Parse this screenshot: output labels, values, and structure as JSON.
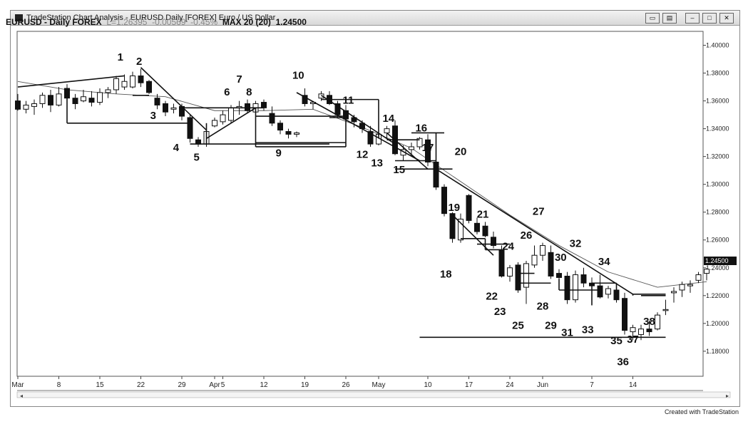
{
  "window": {
    "title": "TradeStation Chart Analysis - EURUSD Daily [FOREX] Euro / US Dollar"
  },
  "header": {
    "symbol": "EURUSD - Daily FOREX",
    "last": "L=1.26395",
    "change": "-0.00569",
    "change_pct": "-0.45%",
    "study": "MAX 20 (20)",
    "study_value": "1.24500"
  },
  "footer": {
    "credit": "Created with TradeStation"
  },
  "chart_data": {
    "type": "candlestick",
    "title": "EURUSD - Daily FOREX",
    "y_ticks": [
      "1.40000",
      "1.38000",
      "1.36000",
      "1.34000",
      "1.32000",
      "1.30000",
      "1.28000",
      "1.26000",
      "1.24000",
      "1.22000",
      "1.20000",
      "1.18000"
    ],
    "ylim": [
      1.162,
      1.41
    ],
    "current_price_label": "1.24500",
    "x_ticks": [
      {
        "label": "Mar",
        "day": 0
      },
      {
        "label": "8",
        "day": 5
      },
      {
        "label": "15",
        "day": 10
      },
      {
        "label": "22",
        "day": 15
      },
      {
        "label": "29",
        "day": 20
      },
      {
        "label": "Apr",
        "day": 24
      },
      {
        "label": "5",
        "day": 25
      },
      {
        "label": "12",
        "day": 30
      },
      {
        "label": "19",
        "day": 35
      },
      {
        "label": "26",
        "day": 40
      },
      {
        "label": "May",
        "day": 44
      },
      {
        "label": "10",
        "day": 50
      },
      {
        "label": "17",
        "day": 55
      },
      {
        "label": "24",
        "day": 60
      },
      {
        "label": "Jun",
        "day": 64
      },
      {
        "label": "7",
        "day": 70
      },
      {
        "label": "14",
        "day": 75
      }
    ],
    "candles": [
      [
        1.36,
        1.365,
        1.353,
        1.354
      ],
      [
        1.354,
        1.36,
        1.351,
        1.357
      ],
      [
        1.356,
        1.361,
        1.35,
        1.358
      ],
      [
        1.358,
        1.366,
        1.355,
        1.364
      ],
      [
        1.364,
        1.368,
        1.352,
        1.357
      ],
      [
        1.357,
        1.37,
        1.356,
        1.365
      ],
      [
        1.369,
        1.372,
        1.36,
        1.362
      ],
      [
        1.362,
        1.365,
        1.354,
        1.358
      ],
      [
        1.36,
        1.368,
        1.359,
        1.363
      ],
      [
        1.362,
        1.367,
        1.356,
        1.359
      ],
      [
        1.359,
        1.369,
        1.357,
        1.366
      ],
      [
        1.366,
        1.37,
        1.362,
        1.368
      ],
      [
        1.368,
        1.378,
        1.365,
        1.376
      ],
      [
        1.37,
        1.379,
        1.368,
        1.374
      ],
      [
        1.37,
        1.381,
        1.369,
        1.378
      ],
      [
        1.378,
        1.383,
        1.37,
        1.373
      ],
      [
        1.374,
        1.375,
        1.365,
        1.366
      ],
      [
        1.362,
        1.365,
        1.354,
        1.357
      ],
      [
        1.358,
        1.36,
        1.349,
        1.352
      ],
      [
        1.354,
        1.358,
        1.351,
        1.355
      ],
      [
        1.356,
        1.358,
        1.346,
        1.349
      ],
      [
        1.348,
        1.35,
        1.33,
        1.333
      ],
      [
        1.332,
        1.334,
        1.327,
        1.329
      ],
      [
        1.329,
        1.339,
        1.327,
        1.338
      ],
      [
        1.342,
        1.348,
        1.341,
        1.346
      ],
      [
        1.345,
        1.353,
        1.343,
        1.35
      ],
      [
        1.346,
        1.357,
        1.344,
        1.355
      ],
      [
        1.355,
        1.36,
        1.35,
        1.356
      ],
      [
        1.358,
        1.361,
        1.351,
        1.353
      ],
      [
        1.352,
        1.36,
        1.35,
        1.358
      ],
      [
        1.359,
        1.361,
        1.353,
        1.355
      ],
      [
        1.351,
        1.356,
        1.342,
        1.344
      ],
      [
        1.344,
        1.346,
        1.336,
        1.339
      ],
      [
        1.338,
        1.34,
        1.333,
        1.336
      ],
      [
        1.336,
        1.338,
        1.334,
        1.337
      ],
      [
        1.364,
        1.369,
        1.356,
        1.358
      ],
      [
        1.358,
        1.36,
        1.354,
        1.359
      ],
      [
        1.362,
        1.367,
        1.36,
        1.365
      ],
      [
        1.364,
        1.367,
        1.357,
        1.358
      ],
      [
        1.358,
        1.36,
        1.348,
        1.35
      ],
      [
        1.353,
        1.357,
        1.345,
        1.347
      ],
      [
        1.348,
        1.35,
        1.341,
        1.345
      ],
      [
        1.344,
        1.346,
        1.337,
        1.34
      ],
      [
        1.338,
        1.342,
        1.327,
        1.329
      ],
      [
        1.329,
        1.338,
        1.328,
        1.336
      ],
      [
        1.337,
        1.342,
        1.333,
        1.34
      ],
      [
        1.342,
        1.346,
        1.321,
        1.322
      ],
      [
        1.321,
        1.328,
        1.317,
        1.325
      ],
      [
        1.325,
        1.33,
        1.32,
        1.327
      ],
      [
        1.327,
        1.334,
        1.325,
        1.333
      ],
      [
        1.332,
        1.336,
        1.313,
        1.316
      ],
      [
        1.316,
        1.32,
        1.296,
        1.298
      ],
      [
        1.298,
        1.3,
        1.277,
        1.279
      ],
      [
        1.279,
        1.28,
        1.258,
        1.261
      ],
      [
        1.26,
        1.279,
        1.258,
        1.275
      ],
      [
        1.292,
        1.293,
        1.272,
        1.274
      ],
      [
        1.272,
        1.276,
        1.264,
        1.266
      ],
      [
        1.27,
        1.273,
        1.262,
        1.263
      ],
      [
        1.262,
        1.266,
        1.254,
        1.256
      ],
      [
        1.253,
        1.256,
        1.233,
        1.234
      ],
      [
        1.234,
        1.242,
        1.23,
        1.24
      ],
      [
        1.242,
        1.244,
        1.222,
        1.224
      ],
      [
        1.226,
        1.245,
        1.214,
        1.243
      ],
      [
        1.242,
        1.256,
        1.24,
        1.249
      ],
      [
        1.249,
        1.258,
        1.245,
        1.256
      ],
      [
        1.251,
        1.256,
        1.232,
        1.234
      ],
      [
        1.236,
        1.239,
        1.231,
        1.233
      ],
      [
        1.234,
        1.237,
        1.214,
        1.217
      ],
      [
        1.217,
        1.238,
        1.215,
        1.235
      ],
      [
        1.235,
        1.24,
        1.226,
        1.229
      ],
      [
        1.229,
        1.233,
        1.225,
        1.227
      ],
      [
        1.227,
        1.235,
        1.218,
        1.219
      ],
      [
        1.221,
        1.227,
        1.218,
        1.225
      ],
      [
        1.224,
        1.229,
        1.215,
        1.217
      ],
      [
        1.218,
        1.222,
        1.192,
        1.195
      ],
      [
        1.194,
        1.199,
        1.188,
        1.197
      ],
      [
        1.192,
        1.199,
        1.188,
        1.196
      ],
      [
        1.196,
        1.202,
        1.191,
        1.194
      ],
      [
        1.196,
        1.208,
        1.195,
        1.206
      ],
      [
        1.21,
        1.217,
        1.206,
        1.21
      ],
      [
        1.222,
        1.226,
        1.215,
        1.223
      ],
      [
        1.224,
        1.23,
        1.219,
        1.228
      ],
      [
        1.227,
        1.231,
        1.222,
        1.228
      ],
      [
        1.231,
        1.237,
        1.229,
        1.235
      ],
      [
        1.236,
        1.24,
        1.231,
        1.239
      ]
    ],
    "moving_average": [
      [
        0,
        1.374
      ],
      [
        6,
        1.368
      ],
      [
        12,
        1.365
      ],
      [
        18,
        1.363
      ],
      [
        24,
        1.353
      ],
      [
        30,
        1.353
      ],
      [
        36,
        1.354
      ],
      [
        42,
        1.341
      ],
      [
        48,
        1.326
      ],
      [
        54,
        1.302
      ],
      [
        60,
        1.278
      ],
      [
        66,
        1.256
      ],
      [
        72,
        1.237
      ],
      [
        78,
        1.226
      ],
      [
        84,
        1.23
      ]
    ],
    "trendlines": [
      [
        [
          0,
          1.37
        ],
        [
          13,
          1.378
        ]
      ],
      [
        [
          15,
          1.384
        ],
        [
          23,
          1.339
        ]
      ],
      [
        [
          23,
          1.333
        ],
        [
          29,
          1.355
        ]
      ],
      [
        [
          37,
          1.364
        ],
        [
          46,
          1.329
        ]
      ],
      [
        [
          34,
          1.366
        ],
        [
          49,
          1.317
        ]
      ],
      [
        [
          45,
          1.337
        ],
        [
          50,
          1.311
        ]
      ],
      [
        [
          53,
          1.278
        ],
        [
          58,
          1.249
        ]
      ],
      [
        [
          51,
          1.311
        ],
        [
          75,
          1.221
        ]
      ],
      [
        [
          14,
          1.364
        ],
        [
          16,
          1.364
        ]
      ],
      [
        [
          6,
          1.344
        ],
        [
          21,
          1.344
        ]
      ],
      [
        [
          20,
          1.355
        ],
        [
          30,
          1.355
        ]
      ],
      [
        [
          21,
          1.329
        ],
        [
          38,
          1.329
        ]
      ],
      [
        [
          29,
          1.349
        ],
        [
          40,
          1.349
        ]
      ],
      [
        [
          29,
          1.33
        ],
        [
          40,
          1.33
        ]
      ],
      [
        [
          29,
          1.327
        ],
        [
          40,
          1.327
        ]
      ],
      [
        [
          37,
          1.361
        ],
        [
          44,
          1.361
        ]
      ],
      [
        [
          38,
          1.348
        ],
        [
          40,
          1.348
        ]
      ],
      [
        [
          46,
          1.317
        ],
        [
          51,
          1.317
        ]
      ],
      [
        [
          45,
          1.332
        ],
        [
          49,
          1.332
        ]
      ],
      [
        [
          48,
          1.337
        ],
        [
          52,
          1.337
        ]
      ],
      [
        [
          46,
          1.311
        ],
        [
          53,
          1.311
        ]
      ],
      [
        [
          54,
          1.261
        ],
        [
          57,
          1.261
        ]
      ],
      [
        [
          56,
          1.257
        ],
        [
          60,
          1.257
        ]
      ],
      [
        [
          57,
          1.253
        ],
        [
          59,
          1.253
        ]
      ],
      [
        [
          61,
          1.236
        ],
        [
          63,
          1.236
        ]
      ],
      [
        [
          61,
          1.229
        ],
        [
          65,
          1.229
        ]
      ],
      [
        [
          66,
          1.224
        ],
        [
          71,
          1.224
        ]
      ],
      [
        [
          70,
          1.229
        ],
        [
          73,
          1.229
        ]
      ],
      [
        [
          75,
          1.221
        ],
        [
          79,
          1.221
        ]
      ],
      [
        [
          76,
          1.22
        ],
        [
          79,
          1.22
        ]
      ],
      [
        [
          49,
          1.19
        ],
        [
          79,
          1.19
        ]
      ],
      [
        [
          6,
          1.344
        ],
        [
          6,
          1.362
        ]
      ],
      [
        [
          23,
          1.329
        ],
        [
          23,
          1.344
        ]
      ],
      [
        [
          29,
          1.327
        ],
        [
          29,
          1.355
        ]
      ],
      [
        [
          40,
          1.327
        ],
        [
          40,
          1.349
        ]
      ],
      [
        [
          44,
          1.333
        ],
        [
          44,
          1.361
        ]
      ],
      [
        [
          51,
          1.311
        ],
        [
          51,
          1.337
        ]
      ],
      [
        [
          57,
          1.253
        ],
        [
          57,
          1.261
        ]
      ],
      [
        [
          61,
          1.229
        ],
        [
          61,
          1.236
        ]
      ],
      [
        [
          66,
          1.224
        ],
        [
          66,
          1.232
        ]
      ],
      [
        [
          70,
          1.213
        ],
        [
          70,
          1.229
        ]
      ],
      [
        [
          73,
          1.217
        ],
        [
          73,
          1.229
        ]
      ],
      [
        [
          75,
          1.22
        ],
        [
          75,
          1.221
        ]
      ]
    ],
    "wave_labels": [
      {
        "text": "1",
        "day": 12.5,
        "price": 1.389
      },
      {
        "text": "2",
        "day": 14.8,
        "price": 1.386
      },
      {
        "text": "3",
        "day": 16.5,
        "price": 1.347
      },
      {
        "text": "4",
        "day": 19.3,
        "price": 1.324
      },
      {
        "text": "5",
        "day": 21.8,
        "price": 1.317
      },
      {
        "text": "6",
        "day": 25.5,
        "price": 1.364
      },
      {
        "text": "7",
        "day": 27.0,
        "price": 1.373
      },
      {
        "text": "8",
        "day": 28.2,
        "price": 1.364
      },
      {
        "text": "9",
        "day": 31.8,
        "price": 1.32
      },
      {
        "text": "10",
        "day": 34.2,
        "price": 1.376
      },
      {
        "text": "11",
        "day": 40.3,
        "price": 1.358
      },
      {
        "text": "12",
        "day": 42.0,
        "price": 1.319
      },
      {
        "text": "13",
        "day": 43.8,
        "price": 1.313
      },
      {
        "text": "14",
        "day": 45.2,
        "price": 1.345
      },
      {
        "text": "15",
        "day": 46.5,
        "price": 1.308
      },
      {
        "text": "16",
        "day": 49.2,
        "price": 1.338
      },
      {
        "text": "17",
        "day": 50.0,
        "price": 1.324
      },
      {
        "text": "18",
        "day": 52.2,
        "price": 1.233
      },
      {
        "text": "19",
        "day": 53.2,
        "price": 1.281
      },
      {
        "text": "20",
        "day": 54.0,
        "price": 1.321
      },
      {
        "text": "21",
        "day": 56.7,
        "price": 1.276
      },
      {
        "text": "22",
        "day": 57.8,
        "price": 1.217
      },
      {
        "text": "23",
        "day": 58.8,
        "price": 1.206
      },
      {
        "text": "24",
        "day": 59.8,
        "price": 1.253
      },
      {
        "text": "25",
        "day": 61.0,
        "price": 1.196
      },
      {
        "text": "26",
        "day": 62.0,
        "price": 1.261
      },
      {
        "text": "27",
        "day": 63.5,
        "price": 1.278
      },
      {
        "text": "28",
        "day": 64.0,
        "price": 1.21
      },
      {
        "text": "29",
        "day": 65.0,
        "price": 1.196
      },
      {
        "text": "30",
        "day": 66.2,
        "price": 1.245
      },
      {
        "text": "31",
        "day": 67.0,
        "price": 1.191
      },
      {
        "text": "32",
        "day": 68.0,
        "price": 1.255
      },
      {
        "text": "33",
        "day": 69.5,
        "price": 1.193
      },
      {
        "text": "34",
        "day": 71.5,
        "price": 1.242
      },
      {
        "text": "35",
        "day": 73.0,
        "price": 1.185
      },
      {
        "text": "36",
        "day": 73.8,
        "price": 1.17
      },
      {
        "text": "37",
        "day": 75.0,
        "price": 1.186
      },
      {
        "text": "38",
        "day": 77.0,
        "price": 1.199
      }
    ]
  }
}
